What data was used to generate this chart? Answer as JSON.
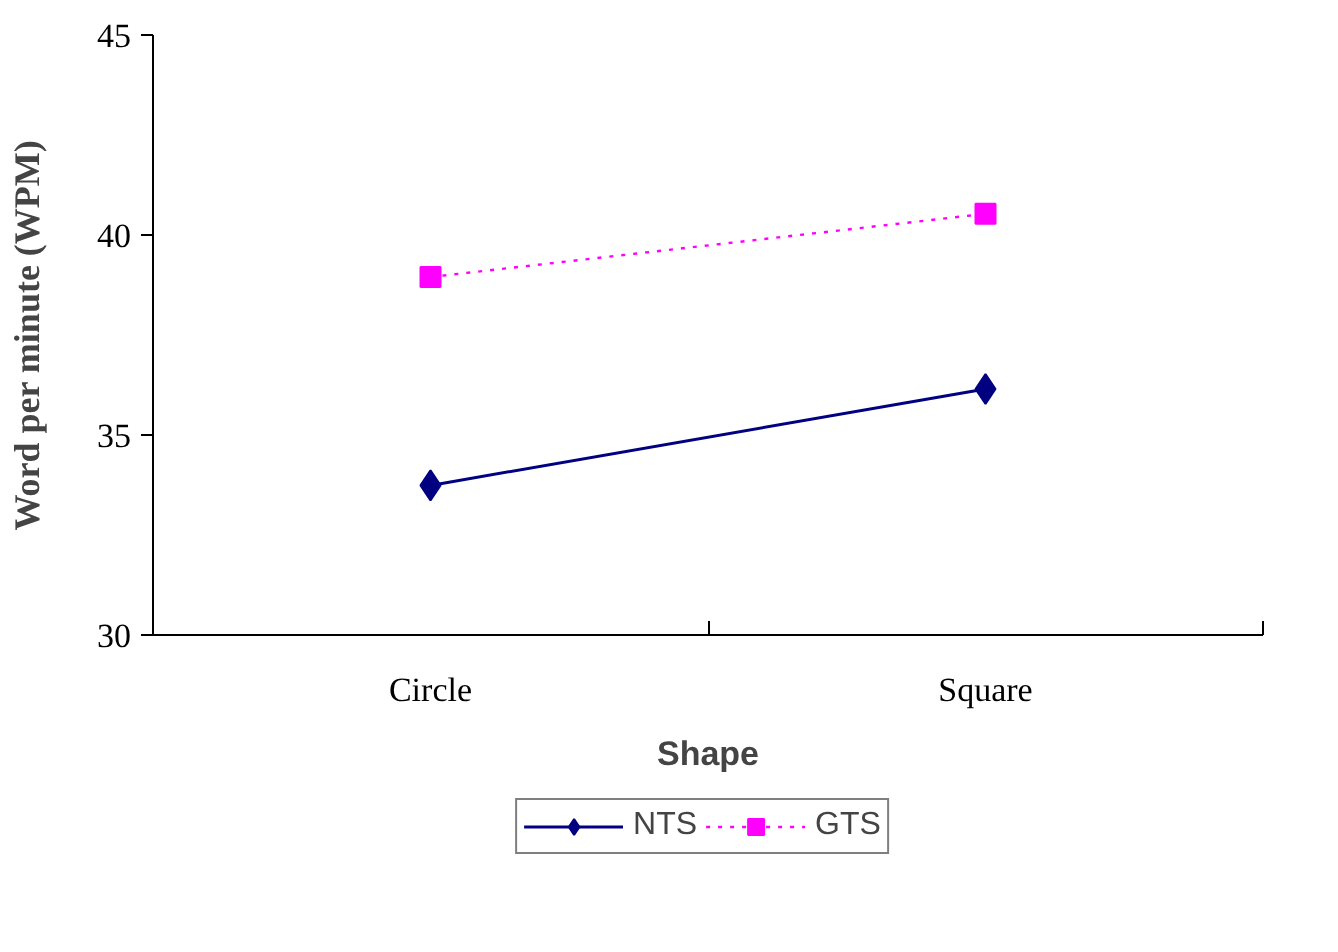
{
  "chart_data": {
    "type": "line",
    "xlabel": "Shape",
    "ylabel": "Word per minute (WPM)",
    "categories": [
      "Circle",
      "Square"
    ],
    "series": [
      {
        "name": "NTS",
        "color": "#000080",
        "values": [
          33.74,
          36.15
        ],
        "marker": "diamond",
        "line_style": "solid"
      },
      {
        "name": "GTS",
        "color": "#ff00ff",
        "values": [
          38.95,
          40.53
        ],
        "marker": "square",
        "line_style": "dotted"
      }
    ],
    "ylim": [
      30,
      45
    ],
    "yticks": [
      30,
      35,
      40,
      45
    ],
    "grid": false,
    "legend": "bottom"
  }
}
